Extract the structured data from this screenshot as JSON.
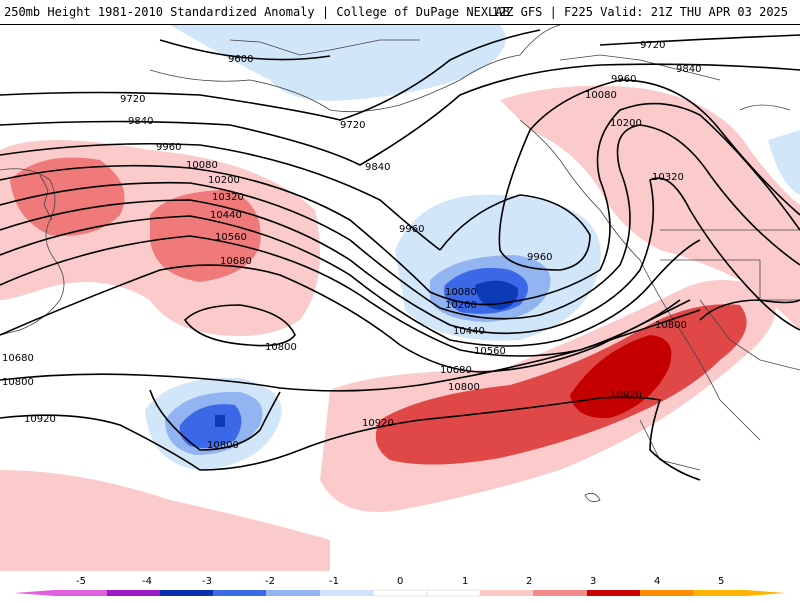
{
  "header": {
    "left": "250mb Height 1981-2010 Standardized Anomaly | College of DuPage NEXLAB",
    "right": "12Z GFS | F225 Valid: 21Z THU APR 03 2025"
  },
  "contours": [
    {
      "label": "9600"
    },
    {
      "label": "9720"
    },
    {
      "label": "9720"
    },
    {
      "label": "9720"
    },
    {
      "label": "9840"
    },
    {
      "label": "9840"
    },
    {
      "label": "9840"
    },
    {
      "label": "9960"
    },
    {
      "label": "9960"
    },
    {
      "label": "9960"
    },
    {
      "label": "9960"
    },
    {
      "label": "10080"
    },
    {
      "label": "10080"
    },
    {
      "label": "10080"
    },
    {
      "label": "10200"
    },
    {
      "label": "10200"
    },
    {
      "label": "10200"
    },
    {
      "label": "10320"
    },
    {
      "label": "10320"
    },
    {
      "label": "10440"
    },
    {
      "label": "10440"
    },
    {
      "label": "10560"
    },
    {
      "label": "10560"
    },
    {
      "label": "10680"
    },
    {
      "label": "10680"
    },
    {
      "label": "10680"
    },
    {
      "label": "10800"
    },
    {
      "label": "10800"
    },
    {
      "label": "10800"
    },
    {
      "label": "10800"
    },
    {
      "label": "10800"
    },
    {
      "label": "10920"
    },
    {
      "label": "10920"
    },
    {
      "label": "10920"
    }
  ],
  "colorbar": {
    "ticks": [
      "-5",
      "-4",
      "-3",
      "-2",
      "-1",
      "0",
      "1",
      "2",
      "3",
      "4",
      "5"
    ],
    "colors": [
      "#e060e0",
      "#9a1ac8",
      "#0a2fb0",
      "#3a6be6",
      "#93b6f2",
      "#cfe3fb",
      "#ffffff",
      "#ffffff",
      "#fcc8c8",
      "#f28a8a",
      "#e55656",
      "#c80000",
      "#ff8c00",
      "#ffb400"
    ]
  },
  "legend_colors": {
    "neg1": "#d2e6fa",
    "neg2": "#92b4f0",
    "neg3": "#3a68e6",
    "neg35": "#0d3bb8",
    "pos1": "#fbcbcb",
    "pos2": "#f07a7a",
    "pos3": "#e04848",
    "pos4": "#c40000"
  }
}
